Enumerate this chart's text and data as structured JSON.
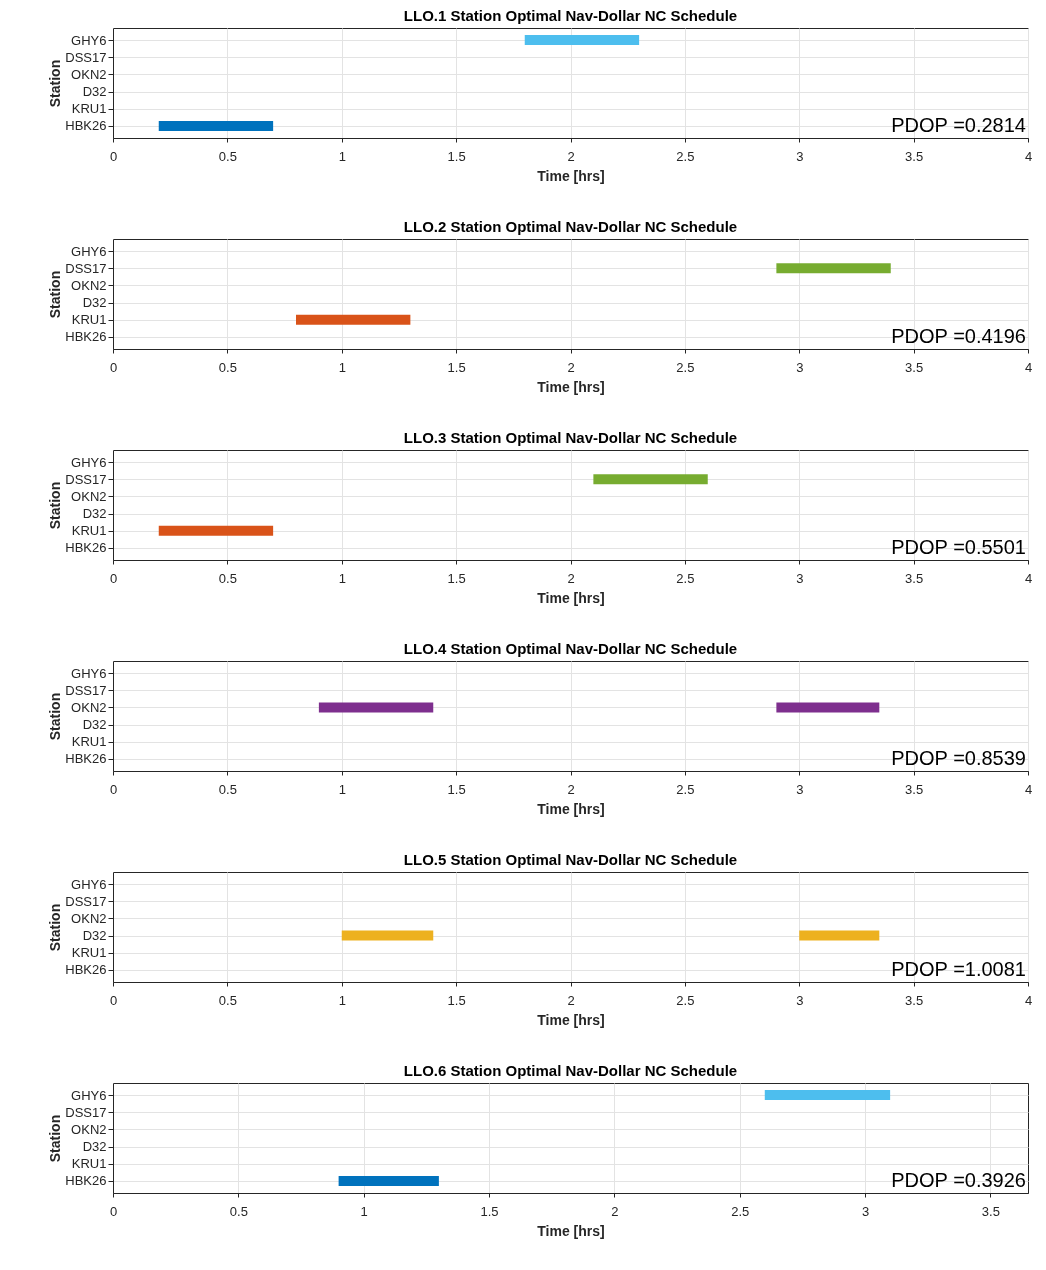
{
  "chart_data": [
    {
      "type": "bar",
      "orientation": "horizontal",
      "title": "LLO.1 Station Optimal Nav-Dollar NC Schedule",
      "xlabel": "Time [hrs]",
      "ylabel": "Station",
      "categories": [
        "GHY6",
        "DSS17",
        "OKN2",
        "D32",
        "KRU1",
        "HBK26"
      ],
      "series": [
        {
          "color": "#4dbeee",
          "base": [
            1.8,
            null,
            null,
            null,
            null,
            null
          ],
          "values": [
            0.5,
            null,
            null,
            null,
            null,
            null
          ]
        },
        {
          "color": "#0072bd",
          "base": [
            null,
            null,
            null,
            null,
            null,
            0.2
          ],
          "values": [
            null,
            null,
            null,
            null,
            null,
            0.5
          ]
        }
      ],
      "xlim": [
        0,
        4
      ],
      "xticks": [
        0,
        0.5,
        1,
        1.5,
        2,
        2.5,
        3,
        3.5,
        4
      ],
      "grid": true,
      "annotations": [
        "PDOP =0.2814"
      ]
    },
    {
      "type": "bar",
      "orientation": "horizontal",
      "title": "LLO.2 Station Optimal Nav-Dollar NC Schedule",
      "xlabel": "Time [hrs]",
      "ylabel": "Station",
      "categories": [
        "GHY6",
        "DSS17",
        "OKN2",
        "D32",
        "KRU1",
        "HBK26"
      ],
      "series": [
        {
          "color": "#77ac30",
          "base": [
            null,
            2.9,
            null,
            null,
            null,
            null
          ],
          "values": [
            null,
            0.5,
            null,
            null,
            null,
            null
          ]
        },
        {
          "color": "#d95319",
          "base": [
            null,
            null,
            null,
            null,
            0.8,
            null
          ],
          "values": [
            null,
            null,
            null,
            null,
            0.5,
            null
          ]
        }
      ],
      "xlim": [
        0,
        4
      ],
      "xticks": [
        0,
        0.5,
        1,
        1.5,
        2,
        2.5,
        3,
        3.5,
        4
      ],
      "grid": true,
      "annotations": [
        "PDOP =0.4196"
      ]
    },
    {
      "type": "bar",
      "orientation": "horizontal",
      "title": "LLO.3 Station Optimal Nav-Dollar NC Schedule",
      "xlabel": "Time [hrs]",
      "ylabel": "Station",
      "categories": [
        "GHY6",
        "DSS17",
        "OKN2",
        "D32",
        "KRU1",
        "HBK26"
      ],
      "series": [
        {
          "color": "#77ac30",
          "base": [
            null,
            2.1,
            null,
            null,
            null,
            null
          ],
          "values": [
            null,
            0.5,
            null,
            null,
            null,
            null
          ]
        },
        {
          "color": "#d95319",
          "base": [
            null,
            null,
            null,
            null,
            0.2,
            null
          ],
          "values": [
            null,
            null,
            null,
            null,
            0.5,
            null
          ]
        }
      ],
      "xlim": [
        0,
        4
      ],
      "xticks": [
        0,
        0.5,
        1,
        1.5,
        2,
        2.5,
        3,
        3.5,
        4
      ],
      "grid": true,
      "annotations": [
        "PDOP =0.5501"
      ]
    },
    {
      "type": "bar",
      "orientation": "horizontal",
      "title": "LLO.4 Station Optimal Nav-Dollar NC Schedule",
      "xlabel": "Time [hrs]",
      "ylabel": "Station",
      "categories": [
        "GHY6",
        "DSS17",
        "OKN2",
        "D32",
        "KRU1",
        "HBK26"
      ],
      "series": [
        {
          "color": "#7e2f8e",
          "base": [
            null,
            null,
            0.9,
            null,
            null,
            null
          ],
          "values": [
            null,
            null,
            0.5,
            null,
            null,
            null
          ]
        },
        {
          "color": "#7e2f8e",
          "base": [
            null,
            null,
            2.9,
            null,
            null,
            null
          ],
          "values": [
            null,
            null,
            0.45,
            null,
            null,
            null
          ]
        }
      ],
      "xlim": [
        0,
        4
      ],
      "xticks": [
        0,
        0.5,
        1,
        1.5,
        2,
        2.5,
        3,
        3.5,
        4
      ],
      "grid": true,
      "annotations": [
        "PDOP =0.8539"
      ]
    },
    {
      "type": "bar",
      "orientation": "horizontal",
      "title": "LLO.5 Station Optimal Nav-Dollar NC Schedule",
      "xlabel": "Time [hrs]",
      "ylabel": "Station",
      "categories": [
        "GHY6",
        "DSS17",
        "OKN2",
        "D32",
        "KRU1",
        "HBK26"
      ],
      "series": [
        {
          "color": "#edb120",
          "base": [
            null,
            null,
            null,
            1.0,
            null,
            null
          ],
          "values": [
            null,
            null,
            null,
            0.4,
            null,
            null
          ]
        },
        {
          "color": "#edb120",
          "base": [
            null,
            null,
            null,
            3.0,
            null,
            null
          ],
          "values": [
            null,
            null,
            null,
            0.35,
            null,
            null
          ]
        }
      ],
      "xlim": [
        0,
        4
      ],
      "xticks": [
        0,
        0.5,
        1,
        1.5,
        2,
        2.5,
        3,
        3.5,
        4
      ],
      "grid": true,
      "annotations": [
        "PDOP =1.0081"
      ]
    },
    {
      "type": "bar",
      "orientation": "horizontal",
      "title": "LLO.6 Station Optimal Nav-Dollar NC Schedule",
      "xlabel": "Time [hrs]",
      "ylabel": "Station",
      "categories": [
        "GHY6",
        "DSS17",
        "OKN2",
        "D32",
        "KRU1",
        "HBK26"
      ],
      "series": [
        {
          "color": "#4dbeee",
          "base": [
            2.6,
            null,
            null,
            null,
            null,
            null
          ],
          "values": [
            0.5,
            null,
            null,
            null,
            null,
            null
          ]
        },
        {
          "color": "#0072bd",
          "base": [
            null,
            null,
            null,
            null,
            null,
            0.9
          ],
          "values": [
            null,
            null,
            null,
            null,
            null,
            0.4
          ]
        }
      ],
      "xlim": [
        0,
        3.65
      ],
      "xticks": [
        0,
        0.5,
        1,
        1.5,
        2,
        2.5,
        3,
        3.5
      ],
      "grid": true,
      "annotations": [
        "PDOP =0.3926"
      ]
    }
  ]
}
